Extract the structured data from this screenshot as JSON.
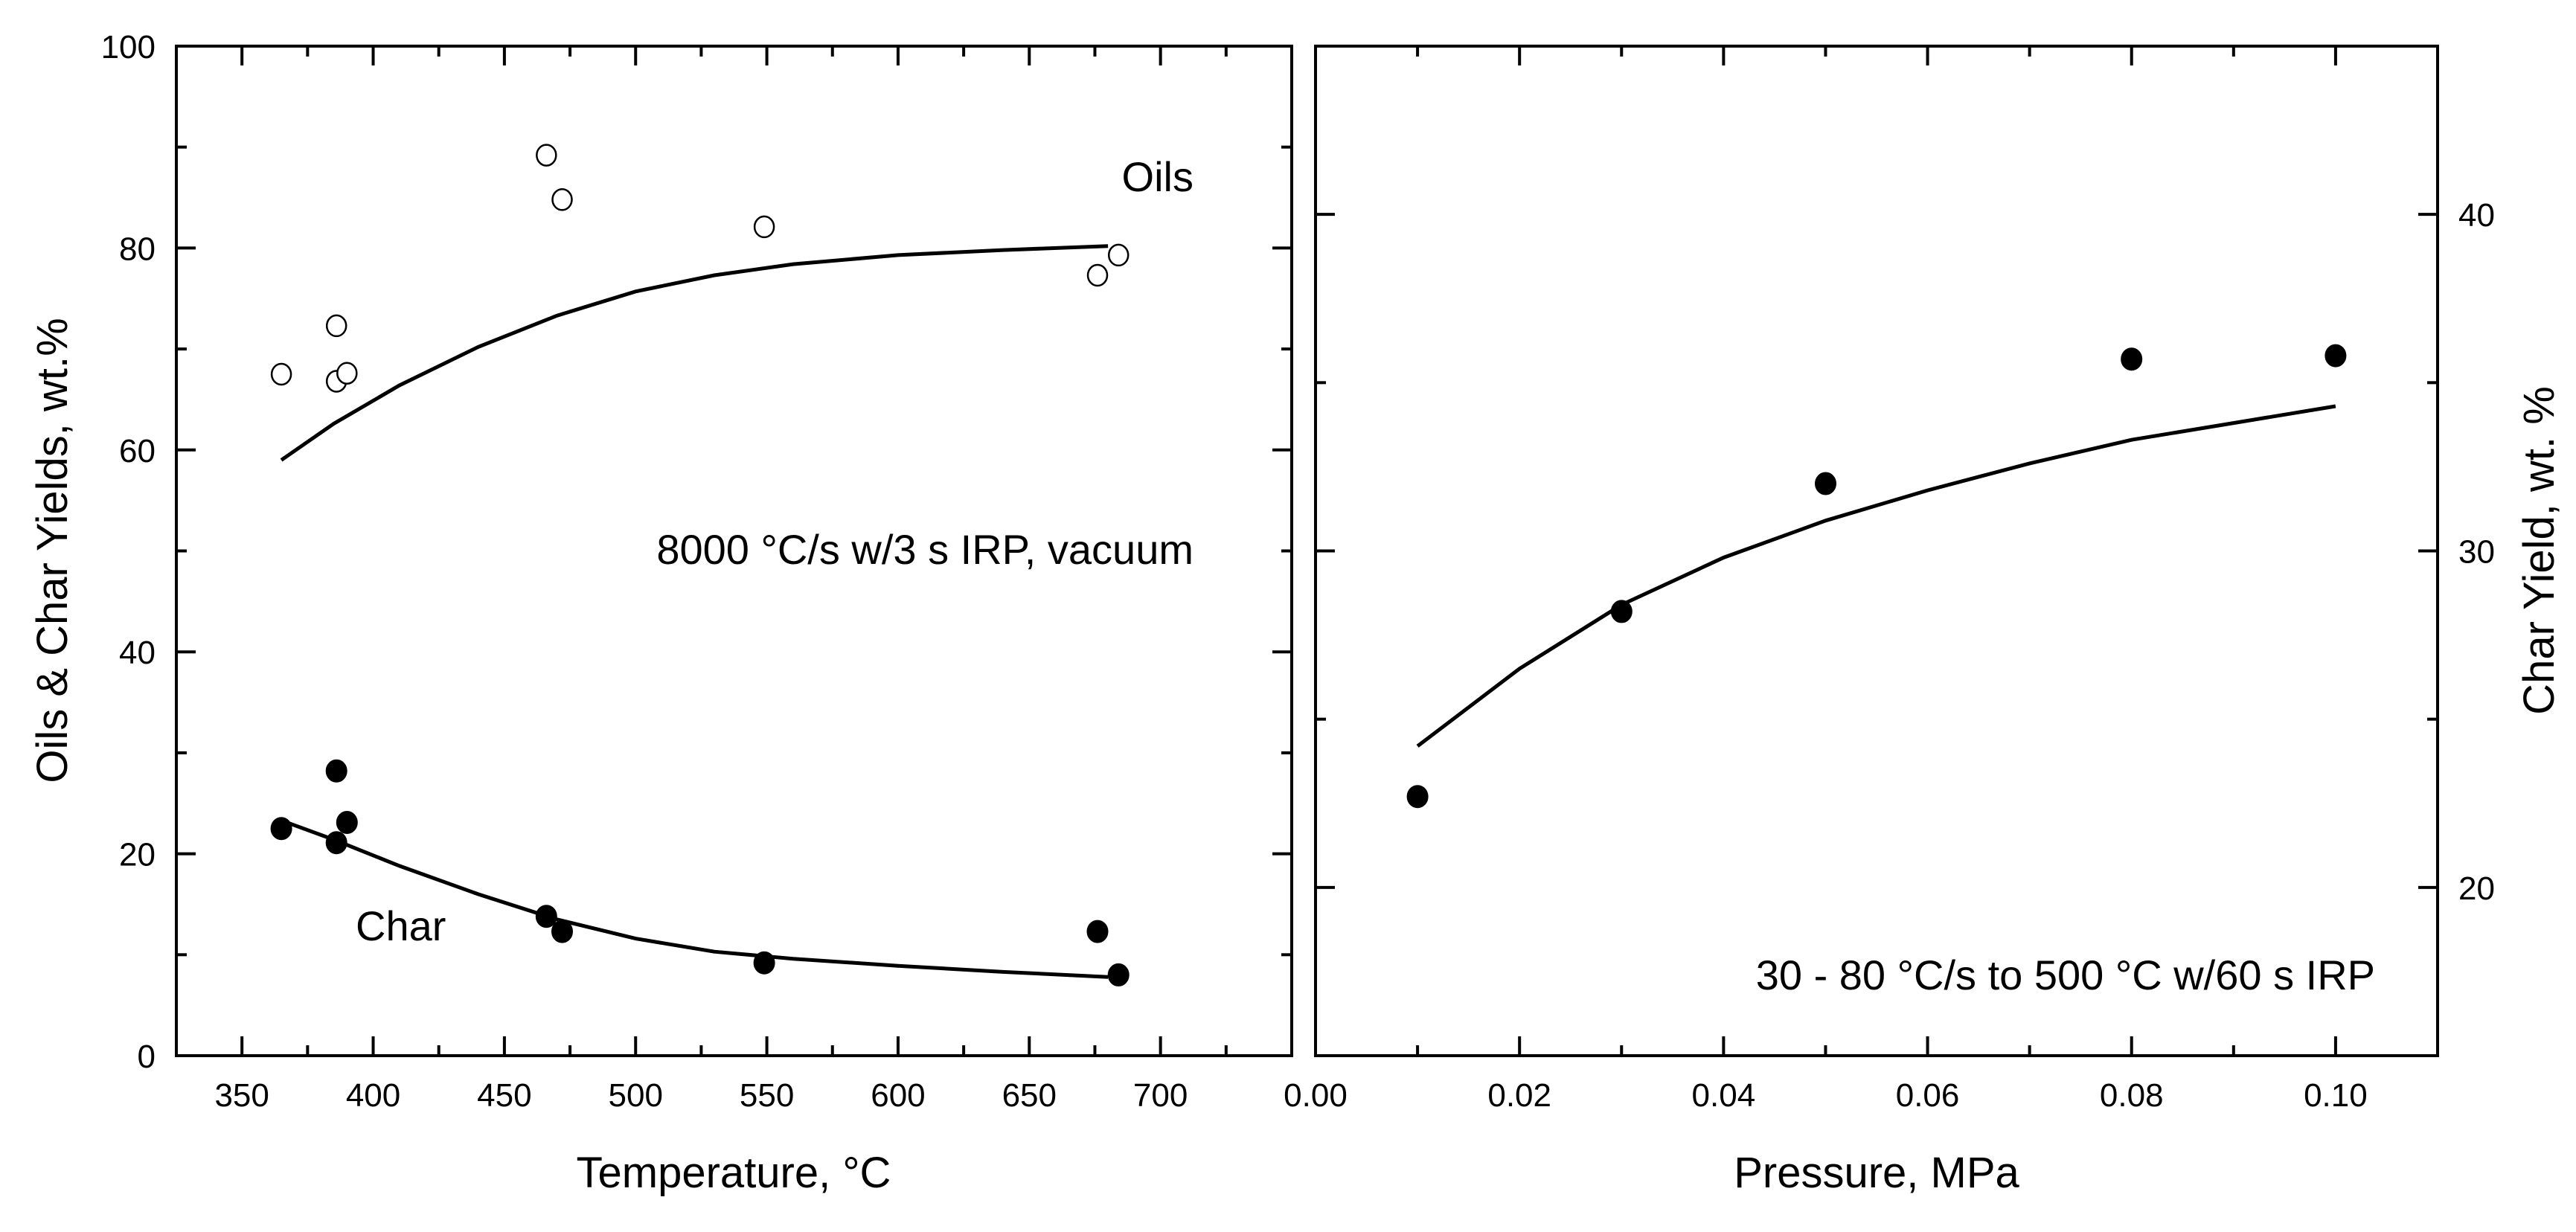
{
  "chart_data": [
    {
      "type": "scatter",
      "panel": "left",
      "xlabel": "Temperature, °C",
      "ylabel": "Oils & Char Yields, wt.%",
      "xlim": [
        325,
        750
      ],
      "ylim": [
        0,
        100
      ],
      "xticks": [
        350,
        400,
        450,
        500,
        550,
        600,
        650,
        700
      ],
      "yticks": [
        0,
        20,
        40,
        60,
        80,
        100
      ],
      "annotations": {
        "condition": "8000 °C/s w/3 s IRP, vacuum",
        "oils_label": "Oils",
        "char_label": "Char"
      },
      "series": [
        {
          "name": "Oils",
          "marker": "open-circle",
          "points": [
            [
              365,
              67.5
            ],
            [
              386,
              72.3
            ],
            [
              386,
              66.8
            ],
            [
              390,
              67.6
            ],
            [
              466,
              89.2
            ],
            [
              472,
              84.8
            ],
            [
              549,
              82.1
            ],
            [
              676,
              77.3
            ],
            [
              684,
              79.3
            ]
          ]
        },
        {
          "name": "Char",
          "marker": "filled-circle",
          "points": [
            [
              365,
              22.5
            ],
            [
              386,
              28.2
            ],
            [
              386,
              21.1
            ],
            [
              390,
              23.1
            ],
            [
              466,
              13.8
            ],
            [
              472,
              12.3
            ],
            [
              549,
              9.2
            ],
            [
              676,
              12.3
            ],
            [
              684,
              8.0
            ]
          ]
        },
        {
          "name": "Oils fit",
          "marker": "line",
          "points": [
            [
              365,
              59.0
            ],
            [
              385,
              62.6
            ],
            [
              410,
              66.4
            ],
            [
              440,
              70.2
            ],
            [
              470,
              73.3
            ],
            [
              500,
              75.7
            ],
            [
              530,
              77.3
            ],
            [
              560,
              78.4
            ],
            [
              600,
              79.3
            ],
            [
              640,
              79.8
            ],
            [
              680,
              80.2
            ]
          ]
        },
        {
          "name": "Char fit",
          "marker": "line",
          "points": [
            [
              365,
              23.3
            ],
            [
              385,
              21.4
            ],
            [
              410,
              18.8
            ],
            [
              440,
              16.0
            ],
            [
              470,
              13.5
            ],
            [
              500,
              11.6
            ],
            [
              530,
              10.3
            ],
            [
              560,
              9.6
            ],
            [
              600,
              8.9
            ],
            [
              640,
              8.3
            ],
            [
              680,
              7.8
            ]
          ]
        }
      ]
    },
    {
      "type": "scatter",
      "panel": "right",
      "xlabel": "Pressure, MPa",
      "ylabel": "Char Yield, wt. %",
      "xlim": [
        0.0,
        0.11
      ],
      "ylim": [
        15,
        45
      ],
      "xticks": [
        "0.00",
        "0.02",
        "0.04",
        "0.06",
        "0.08",
        "0.10"
      ],
      "yticks": [
        20,
        30,
        40
      ],
      "annotations": {
        "condition": "30 - 80 °C/s to 500 °C w/60 s IRP"
      },
      "series": [
        {
          "name": "Char",
          "marker": "filled-circle",
          "points": [
            [
              0.01,
              22.7
            ],
            [
              0.03,
              28.2
            ],
            [
              0.05,
              32.0
            ],
            [
              0.08,
              35.7
            ],
            [
              0.1,
              35.8
            ]
          ]
        },
        {
          "name": "Char fit",
          "marker": "line",
          "points": [
            [
              0.01,
              24.2
            ],
            [
              0.02,
              26.5
            ],
            [
              0.03,
              28.4
            ],
            [
              0.04,
              29.8
            ],
            [
              0.05,
              30.9
            ],
            [
              0.06,
              31.8
            ],
            [
              0.07,
              32.6
            ],
            [
              0.08,
              33.3
            ],
            [
              0.09,
              33.8
            ],
            [
              0.1,
              34.3
            ]
          ]
        }
      ]
    }
  ]
}
